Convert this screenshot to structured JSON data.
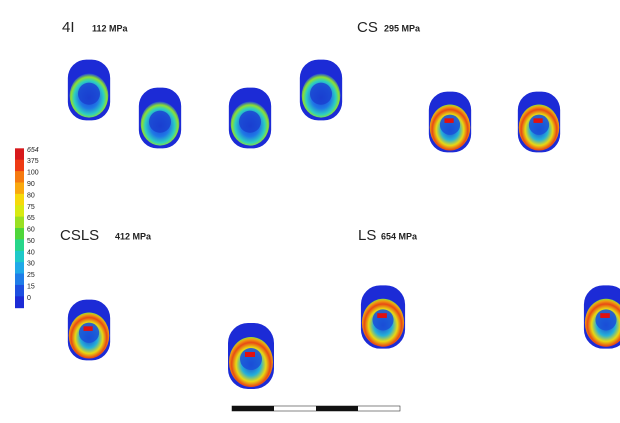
{
  "panels": [
    {
      "label": "4I",
      "stress": "112 MPa"
    },
    {
      "label": "CS",
      "stress": "295 MPa"
    },
    {
      "label": "CSLS",
      "stress": "412 MPa"
    },
    {
      "label": "LS",
      "stress": "654 MPa"
    }
  ],
  "colorbar": {
    "labels": [
      "654",
      "375",
      "100",
      "90",
      "80",
      "75",
      "65",
      "60",
      "50",
      "40",
      "30",
      "25",
      "15",
      "0"
    ],
    "colors": [
      "#d7191c",
      "#ee3b14",
      "#f57a10",
      "#f9a80f",
      "#f6d90c",
      "#d8ea12",
      "#9ae023",
      "#4fd63a",
      "#27d68a",
      "#1ec9c9",
      "#20a9e8",
      "#1f7de8",
      "#1d4fe0",
      "#1c2bd6"
    ]
  }
}
